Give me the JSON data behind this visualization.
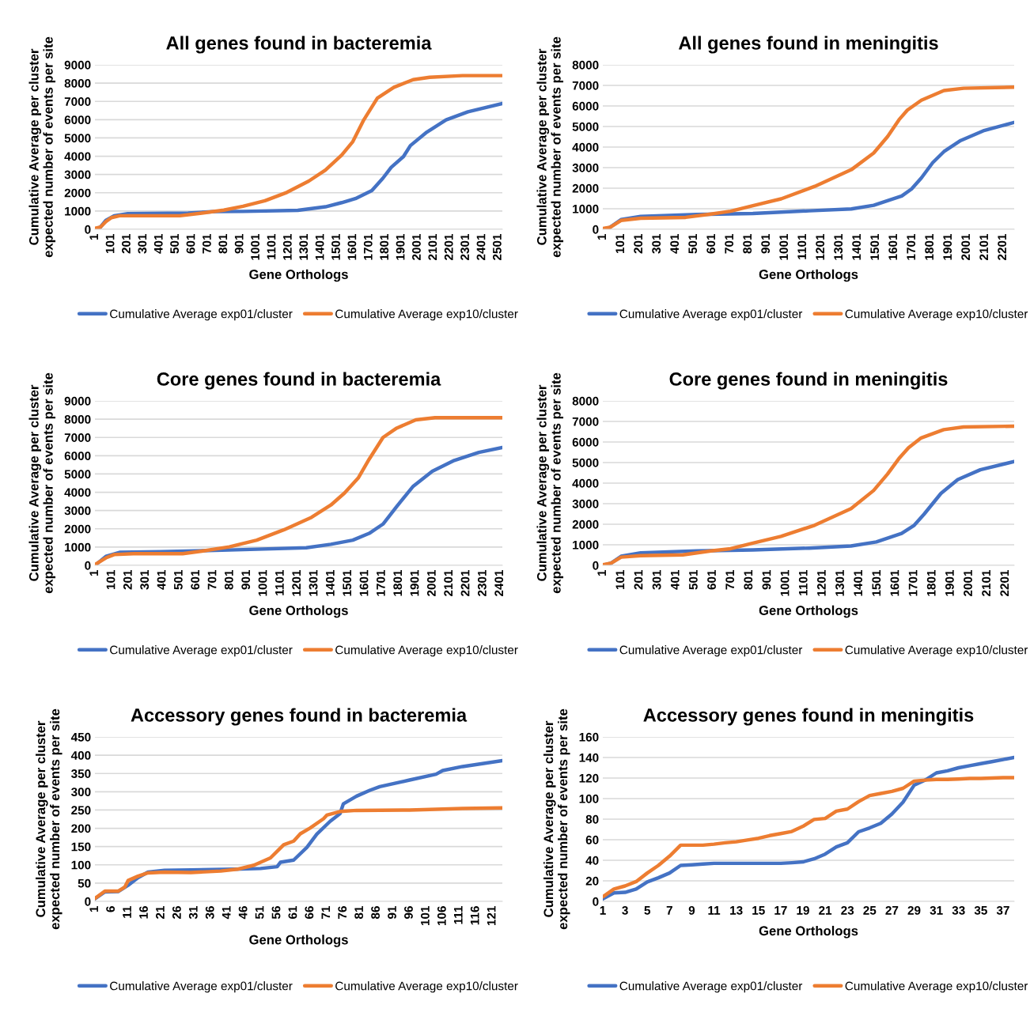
{
  "chart_data": [
    {
      "type": "line",
      "title": "All genes found in bacteremia",
      "xlabel": "Gene Orthologs",
      "ylabel": "Cumulative Average per cluster\nexpected number of events per site",
      "grid": "y",
      "legend": "bottom",
      "xlim": [
        1,
        2527
      ],
      "xticks": [
        1,
        101,
        201,
        301,
        401,
        501,
        601,
        701,
        801,
        901,
        1001,
        1101,
        1201,
        1301,
        1401,
        1501,
        1601,
        1701,
        1801,
        1901,
        2001,
        2101,
        2201,
        2301,
        2401,
        2501
      ],
      "ylim": [
        0,
        9000
      ],
      "yticks": [
        0,
        1000,
        2000,
        3000,
        4000,
        5000,
        6000,
        7000,
        8000,
        9000
      ],
      "series": [
        {
          "name": "Cumulative Average exp01/cluster",
          "color": "#4472c4",
          "x": [
            1,
            35,
            69,
            120,
            205,
            579,
            749,
            919,
            1259,
            1430,
            1531,
            1616,
            1718,
            1786,
            1838,
            1914,
            1957,
            2059,
            2178,
            2314,
            2527
          ],
          "values": [
            0,
            120,
            490,
            740,
            860,
            890,
            970,
            980,
            1040,
            1230,
            1460,
            1680,
            2120,
            2790,
            3390,
            3980,
            4580,
            5320,
            5990,
            6430,
            6880
          ]
        },
        {
          "name": "Cumulative Average exp10/cluster",
          "color": "#ed7d31",
          "x": [
            1,
            35,
            69,
            103,
            154,
            239,
            528,
            664,
            800,
            919,
            1055,
            1191,
            1327,
            1430,
            1531,
            1600,
            1668,
            1752,
            1855,
            1974,
            2076,
            2280,
            2527
          ],
          "values": [
            50,
            120,
            420,
            640,
            740,
            740,
            740,
            890,
            1050,
            1260,
            1560,
            2020,
            2640,
            3240,
            4060,
            4800,
            5990,
            7180,
            7770,
            8190,
            8320,
            8410,
            8410
          ]
        }
      ]
    },
    {
      "type": "line",
      "title": "All genes found in meningitis",
      "xlabel": "Gene Orthologs",
      "ylabel": "Cumulative Average per cluster\nexpected number of events per site",
      "grid": "y",
      "legend": "bottom",
      "xlim": [
        1,
        2262
      ],
      "xticks": [
        1,
        101,
        201,
        301,
        401,
        501,
        601,
        701,
        801,
        901,
        1001,
        1101,
        1201,
        1301,
        1401,
        1501,
        1601,
        1701,
        1801,
        1901,
        2001,
        2101,
        2201
      ],
      "ylim": [
        0,
        8000
      ],
      "yticks": [
        0,
        1000,
        2000,
        3000,
        4000,
        5000,
        6000,
        7000,
        8000
      ],
      "series": [
        {
          "name": "Cumulative Average exp01/cluster",
          "color": "#4472c4",
          "x": [
            1,
            40,
            101,
            209,
            518,
            826,
            1135,
            1367,
            1490,
            1644,
            1698,
            1752,
            1814,
            1876,
            1968,
            2092,
            2262
          ],
          "values": [
            0,
            95,
            470,
            630,
            720,
            770,
            900,
            990,
            1170,
            1620,
            1960,
            2500,
            3240,
            3780,
            4320,
            4790,
            5200
          ]
        },
        {
          "name": "Cumulative Average exp10/cluster",
          "color": "#ed7d31",
          "x": [
            1,
            40,
            101,
            209,
            456,
            595,
            703,
            826,
            981,
            1166,
            1367,
            1490,
            1567,
            1629,
            1675,
            1752,
            1876,
            1984,
            2262
          ],
          "values": [
            40,
            95,
            430,
            540,
            580,
            740,
            880,
            1150,
            1480,
            2090,
            2900,
            3710,
            4520,
            5330,
            5800,
            6280,
            6750,
            6860,
            6910
          ]
        }
      ]
    },
    {
      "type": "line",
      "title": "Core genes found in bacteremia",
      "xlabel": "Gene Orthologs",
      "ylabel": "Cumulative Average per cluster\nexpected number of events per site",
      "grid": "y",
      "legend": "bottom",
      "xlim": [
        1,
        2415
      ],
      "xticks": [
        1,
        101,
        201,
        301,
        401,
        501,
        601,
        701,
        801,
        901,
        1001,
        1101,
        1201,
        1301,
        1401,
        1501,
        1601,
        1701,
        1801,
        1901,
        2001,
        2101,
        2201,
        2301,
        2401
      ],
      "ylim": [
        0,
        9000
      ],
      "yticks": [
        0,
        1000,
        2000,
        3000,
        4000,
        5000,
        6000,
        7000,
        8000,
        9000
      ],
      "series": [
        {
          "name": "Cumulative Average exp01/cluster",
          "color": "#4472c4",
          "x": [
            1,
            66,
            147,
            391,
            879,
            1253,
            1399,
            1529,
            1626,
            1708,
            1789,
            1887,
            2000,
            2130,
            2276,
            2415
          ],
          "values": [
            0,
            490,
            710,
            750,
            860,
            960,
            1150,
            1380,
            1750,
            2260,
            3220,
            4330,
            5150,
            5740,
            6180,
            6450
          ]
        },
        {
          "name": "Cumulative Average exp10/cluster",
          "color": "#ed7d31",
          "x": [
            1,
            66,
            115,
            229,
            521,
            635,
            797,
            960,
            1122,
            1285,
            1399,
            1480,
            1561,
            1626,
            1708,
            1789,
            1902,
            2016,
            2415
          ],
          "values": [
            40,
            410,
            590,
            640,
            640,
            780,
            1010,
            1380,
            1950,
            2630,
            3300,
            3960,
            4780,
            5810,
            7000,
            7510,
            7960,
            8080,
            8080
          ]
        }
      ]
    },
    {
      "type": "line",
      "title": "Core genes found in meningitis",
      "xlabel": "Gene Orthologs",
      "ylabel": "Cumulative Average per cluster\nexpected number of events per site",
      "grid": "y",
      "legend": "bottom",
      "xlim": [
        1,
        2248
      ],
      "xticks": [
        1,
        101,
        201,
        301,
        401,
        501,
        601,
        701,
        801,
        901,
        1001,
        1101,
        1201,
        1301,
        1401,
        1501,
        1601,
        1701,
        1801,
        1901,
        2001,
        2101,
        2201
      ],
      "ylim": [
        0,
        8000
      ],
      "yticks": [
        0,
        1000,
        2000,
        3000,
        4000,
        5000,
        6000,
        7000,
        8000
      ],
      "series": [
        {
          "name": "Cumulative Average exp01/cluster",
          "color": "#4472c4",
          "x": [
            1,
            47,
            101,
            208,
            515,
            821,
            1128,
            1357,
            1495,
            1633,
            1702,
            1756,
            1848,
            1940,
            2063,
            2248
          ],
          "values": [
            0,
            110,
            440,
            610,
            700,
            750,
            840,
            940,
            1140,
            1550,
            1950,
            2490,
            3500,
            4170,
            4650,
            5050
          ]
        },
        {
          "name": "Cumulative Average exp10/cluster",
          "color": "#ed7d31",
          "x": [
            1,
            47,
            101,
            208,
            438,
            591,
            699,
            821,
            974,
            1158,
            1357,
            1480,
            1556,
            1618,
            1671,
            1740,
            1863,
            1971,
            2248
          ],
          "values": [
            30,
            110,
            400,
            470,
            510,
            700,
            810,
            1080,
            1410,
            1950,
            2760,
            3640,
            4440,
            5190,
            5720,
            6200,
            6600,
            6730,
            6770
          ]
        }
      ]
    },
    {
      "type": "line",
      "title": "Accessory genes found in bacteremia",
      "xlabel": "Gene Orthologs",
      "ylabel": "Cumulative Average per cluster\nexpected number of events per site",
      "grid": "y",
      "legend": "bottom",
      "xlim": [
        1,
        124
      ],
      "xticks": [
        1,
        6,
        11,
        16,
        21,
        26,
        31,
        36,
        41,
        46,
        51,
        56,
        61,
        66,
        71,
        76,
        81,
        86,
        91,
        96,
        101,
        106,
        111,
        116,
        121
      ],
      "ylim": [
        0,
        450
      ],
      "yticks": [
        0,
        50,
        100,
        150,
        200,
        250,
        300,
        350,
        400,
        450
      ],
      "series": [
        {
          "name": "Cumulative Average exp01/cluster",
          "color": "#4472c4",
          "x": [
            1,
            4,
            8,
            11,
            14,
            17,
            22,
            30,
            43,
            51,
            56,
            57,
            61,
            65,
            68,
            72,
            75,
            76,
            80,
            84,
            87,
            96,
            104,
            106,
            112,
            124
          ],
          "values": [
            7,
            26,
            27,
            44,
            65,
            80,
            85,
            86,
            88,
            90,
            95,
            107,
            113,
            148,
            184,
            219,
            240,
            267,
            288,
            304,
            314,
            332,
            348,
            358,
            369,
            385
          ]
        },
        {
          "name": "Cumulative Average exp10/cluster",
          "color": "#ed7d31",
          "x": [
            1,
            4,
            8,
            10,
            11,
            14,
            17,
            22,
            30,
            39,
            44,
            49,
            54,
            58,
            61,
            63,
            66,
            70,
            71,
            75,
            80,
            96,
            112,
            124
          ],
          "values": [
            8,
            28,
            28,
            39,
            57,
            69,
            78,
            80,
            79,
            83,
            88,
            99,
            119,
            155,
            165,
            185,
            201,
            226,
            236,
            246,
            249,
            250,
            254,
            256
          ]
        }
      ]
    },
    {
      "type": "line",
      "title": "Accessory genes found in meningitis",
      "xlabel": "Gene Orthologs",
      "ylabel": "Cumulative Average per cluster\nexpected number of events per site",
      "grid": "y",
      "legend": "bottom",
      "xlim": [
        1,
        38
      ],
      "xticks": [
        1,
        3,
        5,
        7,
        9,
        11,
        13,
        15,
        17,
        19,
        21,
        23,
        25,
        27,
        29,
        31,
        33,
        35,
        37
      ],
      "ylim": [
        0,
        160
      ],
      "yticks": [
        0,
        20,
        40,
        60,
        80,
        100,
        120,
        140,
        160
      ],
      "series": [
        {
          "name": "Cumulative Average exp01/cluster",
          "color": "#4472c4",
          "x": [
            1,
            2,
            3,
            4,
            5,
            6,
            7,
            8,
            9,
            10,
            11,
            12,
            13,
            14,
            15,
            16,
            17,
            18,
            19,
            20,
            21,
            22,
            23,
            24,
            25,
            26,
            27,
            28,
            29,
            30,
            31,
            32,
            33,
            34,
            35,
            36,
            37,
            38
          ],
          "values": [
            2.5,
            8.3,
            8.8,
            12,
            19,
            23,
            27.6,
            35,
            35.6,
            36.4,
            37,
            37,
            37,
            37,
            37,
            37,
            37,
            37.6,
            38.4,
            41.4,
            46,
            53,
            57,
            67.7,
            71.5,
            76,
            85,
            96.5,
            113,
            118,
            125,
            127,
            130,
            132,
            134,
            136,
            138,
            140
          ]
        },
        {
          "name": "Cumulative Average exp10/cluster",
          "color": "#ed7d31",
          "x": [
            1,
            2,
            3,
            4,
            5,
            6,
            7,
            8,
            9,
            10,
            11,
            12,
            13,
            14,
            15,
            16,
            17,
            18,
            19,
            20,
            21,
            22,
            23,
            24,
            25,
            26,
            27,
            28,
            29,
            30,
            31,
            32,
            33,
            34,
            35,
            36,
            37,
            38
          ],
          "values": [
            4.5,
            12,
            15,
            19.3,
            27.6,
            35,
            44,
            54.7,
            54.7,
            54.7,
            55.7,
            57,
            58,
            59.7,
            61.4,
            64,
            66,
            68,
            73,
            79.7,
            80.7,
            87.8,
            89.8,
            97,
            103,
            105,
            107,
            110,
            117,
            118,
            118.6,
            118.6,
            119,
            119.6,
            119.6,
            120,
            120.4,
            120.4
          ]
        }
      ]
    }
  ]
}
